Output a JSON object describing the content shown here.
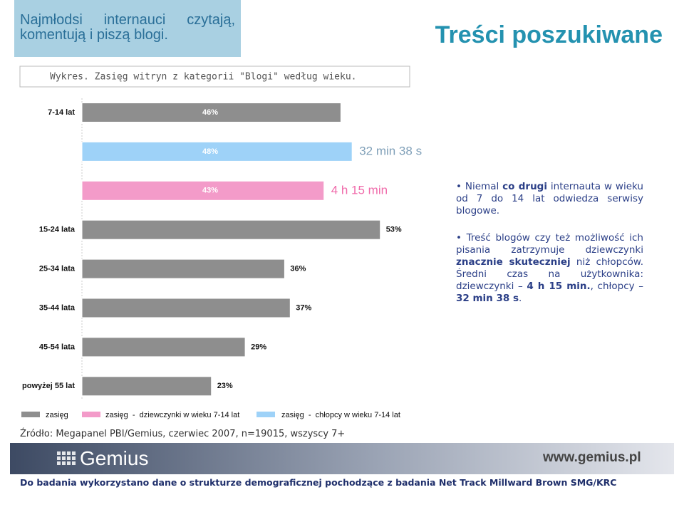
{
  "header": {
    "tagline": "Najmłodsi internauci czytają, komentują i piszą blogi.",
    "title": "Treści poszukiwane"
  },
  "chart_data": {
    "type": "bar",
    "orientation": "horizontal",
    "title": "Wykres. Zasięg witryn z kategorii \"Blogi\" według wieku.",
    "categories": [
      "7-14 lat",
      null,
      null,
      "15-24 lata",
      "25-34 lata",
      "35-44 lata",
      "45-54 lata",
      "powyżej 55 lat"
    ],
    "series": [
      {
        "name": "zasięg",
        "color": "#8e8e8e",
        "values": [
          46,
          null,
          null,
          53,
          36,
          37,
          29,
          23
        ],
        "value_labels": [
          "46%",
          null,
          null,
          "53%",
          "36%",
          "37%",
          "29%",
          "23%"
        ]
      },
      {
        "name": "zasięg  -  dziewczynki w wieku 7-14 lat",
        "color": "#f39bc9",
        "values": [
          null,
          null,
          43,
          null,
          null,
          null,
          null,
          null
        ],
        "value_labels": [
          null,
          null,
          "43%",
          null,
          null,
          null,
          null,
          null
        ]
      },
      {
        "name": "zasięg  -  chłopcy w wieku 7-14 lat",
        "color": "#9ed2f8",
        "values": [
          null,
          48,
          null,
          null,
          null,
          null,
          null,
          null
        ],
        "value_labels": [
          null,
          "48%",
          null,
          null,
          null,
          null,
          null,
          null
        ]
      }
    ],
    "annotations": [
      "32 min 38 s",
      "4 h 15 min"
    ],
    "xlim": [
      0,
      100
    ]
  },
  "bullets": [
    [
      {
        "text": "Niemal "
      },
      {
        "text": "co drugi",
        "bold": true
      },
      {
        "text": " internauta w wieku od 7 do 14 lat odwiedza serwisy blogowe."
      }
    ],
    [
      {
        "text": "Treść blogów czy też możliwość ich pisania zatrzymuje dziewczynki "
      },
      {
        "text": "znacznie skuteczniej",
        "bold": true
      },
      {
        "text": " niż chłopców. Średni czas na użytkownika: dziewczynki – "
      },
      {
        "text": "4 h 15 min.",
        "bold": true
      },
      {
        "text": ", chłopcy – "
      },
      {
        "text": "32 min 38 s",
        "bold": true
      },
      {
        "text": "."
      }
    ]
  ],
  "source": "Źródło: Megapanel PBI/Gemius, czerwiec 2007, n=19015, wszyscy 7+",
  "footer": {
    "logo": "Gemius",
    "url": "www.gemius.pl",
    "note": "Do badania wykorzystano dane o strukturze demograficznej pochodzące z badania Net Track Millward Brown SMG/KRC"
  }
}
